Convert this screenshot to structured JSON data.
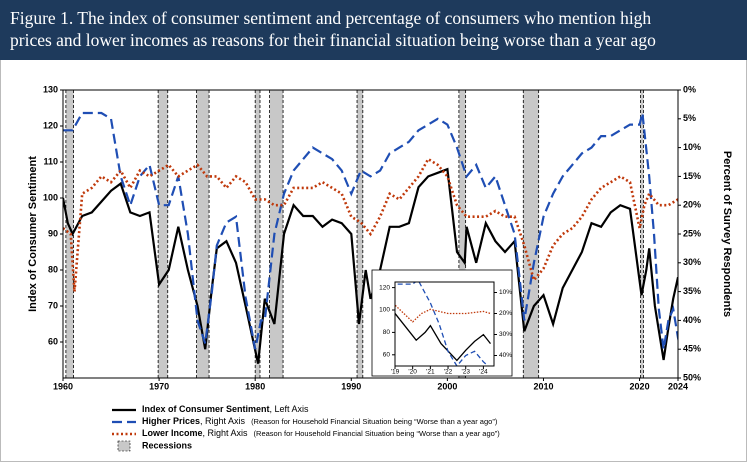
{
  "chart_data": {
    "type": "line",
    "title": [
      "Figure 1. The index of consumer sentiment and percentage of consumers who mention high",
      "prices and lower incomes as reasons for their financial situation being worse than a year ago"
    ],
    "ylabel": "Index of Consumer Sentiment",
    "y2label": "Percent of Survey Respondents",
    "xlim": [
      1960,
      2024
    ],
    "xticks": [
      1960,
      1970,
      1980,
      1990,
      2000,
      2010,
      2020,
      2024
    ],
    "ylim": [
      50,
      130
    ],
    "yticks": [
      60,
      70,
      80,
      90,
      100,
      110,
      120,
      130
    ],
    "y2lim": [
      0,
      50
    ],
    "y2_inverted": true,
    "y2ticks": [
      {
        "value": 0,
        "label": "0%"
      },
      {
        "value": 5,
        "label": "5%"
      },
      {
        "value": 10,
        "label": "10%"
      },
      {
        "value": 15,
        "label": "15%"
      },
      {
        "value": 20,
        "label": "20%"
      },
      {
        "value": 25,
        "label": "25%"
      },
      {
        "value": 30,
        "label": "30%"
      },
      {
        "value": 35,
        "label": "35%"
      },
      {
        "value": 40,
        "label": "40%"
      },
      {
        "value": 45,
        "label": "45%"
      },
      {
        "value": 50,
        "label": "50%"
      }
    ],
    "recessions": {
      "name": "Recessions",
      "color": "#c8c8c8",
      "ranges": [
        [
          1960.3,
          1961.1
        ],
        [
          1969.9,
          1970.9
        ],
        [
          1973.9,
          1975.2
        ],
        [
          1980.0,
          1980.5
        ],
        [
          1981.5,
          1982.9
        ],
        [
          1990.6,
          1991.2
        ],
        [
          2001.2,
          2001.9
        ],
        [
          2007.9,
          2009.5
        ],
        [
          2020.1,
          2020.4
        ]
      ]
    },
    "series": [
      {
        "name": "Index of Consumer Sentiment",
        "note": ", Left Axis",
        "color": "#000000",
        "style": "solid",
        "axis": "y",
        "x": [
          1960,
          1960.5,
          1961,
          1962,
          1963,
          1964,
          1965,
          1966,
          1967,
          1968,
          1969,
          1970,
          1971,
          1972,
          1973,
          1974,
          1974.8,
          1975.5,
          1976,
          1977,
          1978,
          1979,
          1980.3,
          1981,
          1982,
          1983,
          1984,
          1985,
          1986,
          1987,
          1988,
          1989,
          1990,
          1990.8,
          1991.5,
          1992,
          1993,
          1994,
          1995,
          1996,
          1997,
          1998,
          1999,
          2000,
          2001,
          2001.8,
          2002,
          2003,
          2004,
          2005,
          2006,
          2007,
          2008,
          2009,
          2010,
          2011,
          2012,
          2013,
          2014,
          2015,
          2016,
          2017,
          2018,
          2019,
          2020.2,
          2020.7,
          2021,
          2021.6,
          2022.5,
          2023,
          2023.5,
          2024,
          2024.4
        ],
        "values": [
          100,
          93,
          90,
          95,
          96,
          99,
          102,
          104,
          96,
          95,
          96,
          76,
          80,
          92,
          80,
          70,
          58,
          75,
          86,
          88,
          82,
          70,
          54,
          72,
          65,
          90,
          98,
          95,
          95,
          92,
          94,
          93,
          90,
          65,
          80,
          72,
          80,
          92,
          92,
          93,
          103,
          106,
          107,
          108,
          85,
          82,
          92,
          82,
          93,
          88,
          85,
          88,
          63,
          70,
          73,
          65,
          75,
          80,
          85,
          93,
          92,
          96,
          98,
          97,
          73,
          80,
          86,
          70,
          55,
          64,
          72,
          78,
          70
        ]
      },
      {
        "name": "Higher Prices",
        "note": ", Right Axis",
        "desc": "(Reason for Household Financial Situation being “Worse than a year ago”)",
        "color": "#1f4eb4",
        "style": "dashed",
        "axis": "y2",
        "x": [
          1960,
          1961,
          1962,
          1964,
          1965,
          1966,
          1967,
          1968,
          1969,
          1970,
          1971,
          1972,
          1973,
          1974,
          1974.8,
          1975.5,
          1976,
          1977,
          1978,
          1979,
          1980,
          1980.6,
          1981,
          1982,
          1983,
          1984,
          1985,
          1986,
          1987,
          1988,
          1989,
          1990,
          1991,
          1992,
          1993,
          1994,
          1995,
          1996,
          1997,
          1998,
          1999,
          2000,
          2001,
          2002,
          2003,
          2004,
          2005,
          2006,
          2007,
          2008,
          2009,
          2010,
          2011,
          2012,
          2013,
          2014,
          2015,
          2016,
          2017,
          2018,
          2019,
          2020,
          2020.3,
          2021,
          2021.5,
          2022,
          2022.5,
          2023,
          2023.5,
          2024,
          2024.4
        ],
        "values": [
          7,
          7,
          4,
          4,
          5,
          15,
          20,
          15,
          13,
          20,
          20,
          15,
          25,
          40,
          44,
          35,
          27,
          23,
          22,
          36,
          45,
          40,
          40,
          25,
          18,
          14,
          12,
          10,
          11,
          12,
          14,
          18,
          14,
          15,
          14,
          11,
          10,
          9,
          7,
          6,
          5,
          6,
          10,
          15,
          13,
          17,
          15,
          20,
          25,
          40,
          30,
          22,
          18,
          15,
          13,
          11,
          10,
          8,
          8,
          7,
          6,
          6,
          4,
          15,
          25,
          38,
          45,
          40,
          38,
          43,
          46
        ]
      },
      {
        "name": "Lower Income",
        "note": ", Right Axis",
        "desc": "(Reason for Household Financial Situation being “Worse than a year ago”)",
        "color": "#c0390b",
        "style": "dotted",
        "axis": "y2",
        "x": [
          1960,
          1960.8,
          1961.2,
          1962,
          1963,
          1964,
          1965,
          1966,
          1967,
          1968,
          1969,
          1970,
          1971,
          1972,
          1973,
          1974,
          1975,
          1976,
          1977,
          1978,
          1979,
          1980,
          1981,
          1982,
          1983,
          1984,
          1985,
          1986,
          1987,
          1988,
          1989,
          1990,
          1991,
          1992,
          1993,
          1994,
          1995,
          1996,
          1997,
          1998,
          1999,
          2000,
          2001,
          2002,
          2003,
          2004,
          2005,
          2006,
          2007,
          2008,
          2009,
          2010,
          2011,
          2012,
          2013,
          2014,
          2015,
          2016,
          2017,
          2018,
          2019,
          2020,
          2020.5,
          2021,
          2022,
          2023,
          2024,
          2024.4
        ],
        "values": [
          24,
          25,
          35,
          18,
          17,
          15,
          16,
          14,
          17,
          14,
          15,
          14,
          13,
          15,
          14,
          13,
          15,
          15,
          17,
          15,
          16,
          19,
          19,
          20,
          20,
          17,
          17,
          17,
          16,
          17,
          18,
          22,
          23,
          25,
          22,
          18,
          19,
          17,
          15,
          12,
          13,
          15,
          20,
          22,
          22,
          22,
          21,
          22,
          22,
          27,
          33,
          31,
          27,
          25,
          24,
          22,
          19,
          17,
          16,
          15,
          16,
          24,
          20,
          18,
          20,
          20,
          19,
          20
        ]
      }
    ],
    "inset": {
      "xlim": [
        2019,
        2024.6
      ],
      "xticks": [
        {
          "value": 2019,
          "label": "'19"
        },
        {
          "value": 2020,
          "label": "'20"
        },
        {
          "value": 2021,
          "label": "'21"
        },
        {
          "value": 2022,
          "label": "'22"
        },
        {
          "value": 2023,
          "label": "'23"
        },
        {
          "value": 2024,
          "label": "'24"
        }
      ],
      "ylim": [
        50,
        125
      ],
      "yticks": [
        60,
        80,
        100,
        120
      ],
      "y2lim": [
        5,
        45
      ],
      "y2ticks": [
        {
          "value": 10,
          "label": "10%"
        },
        {
          "value": 20,
          "label": "20%"
        },
        {
          "value": 30,
          "label": "30%"
        },
        {
          "value": 40,
          "label": "40%"
        }
      ]
    }
  }
}
